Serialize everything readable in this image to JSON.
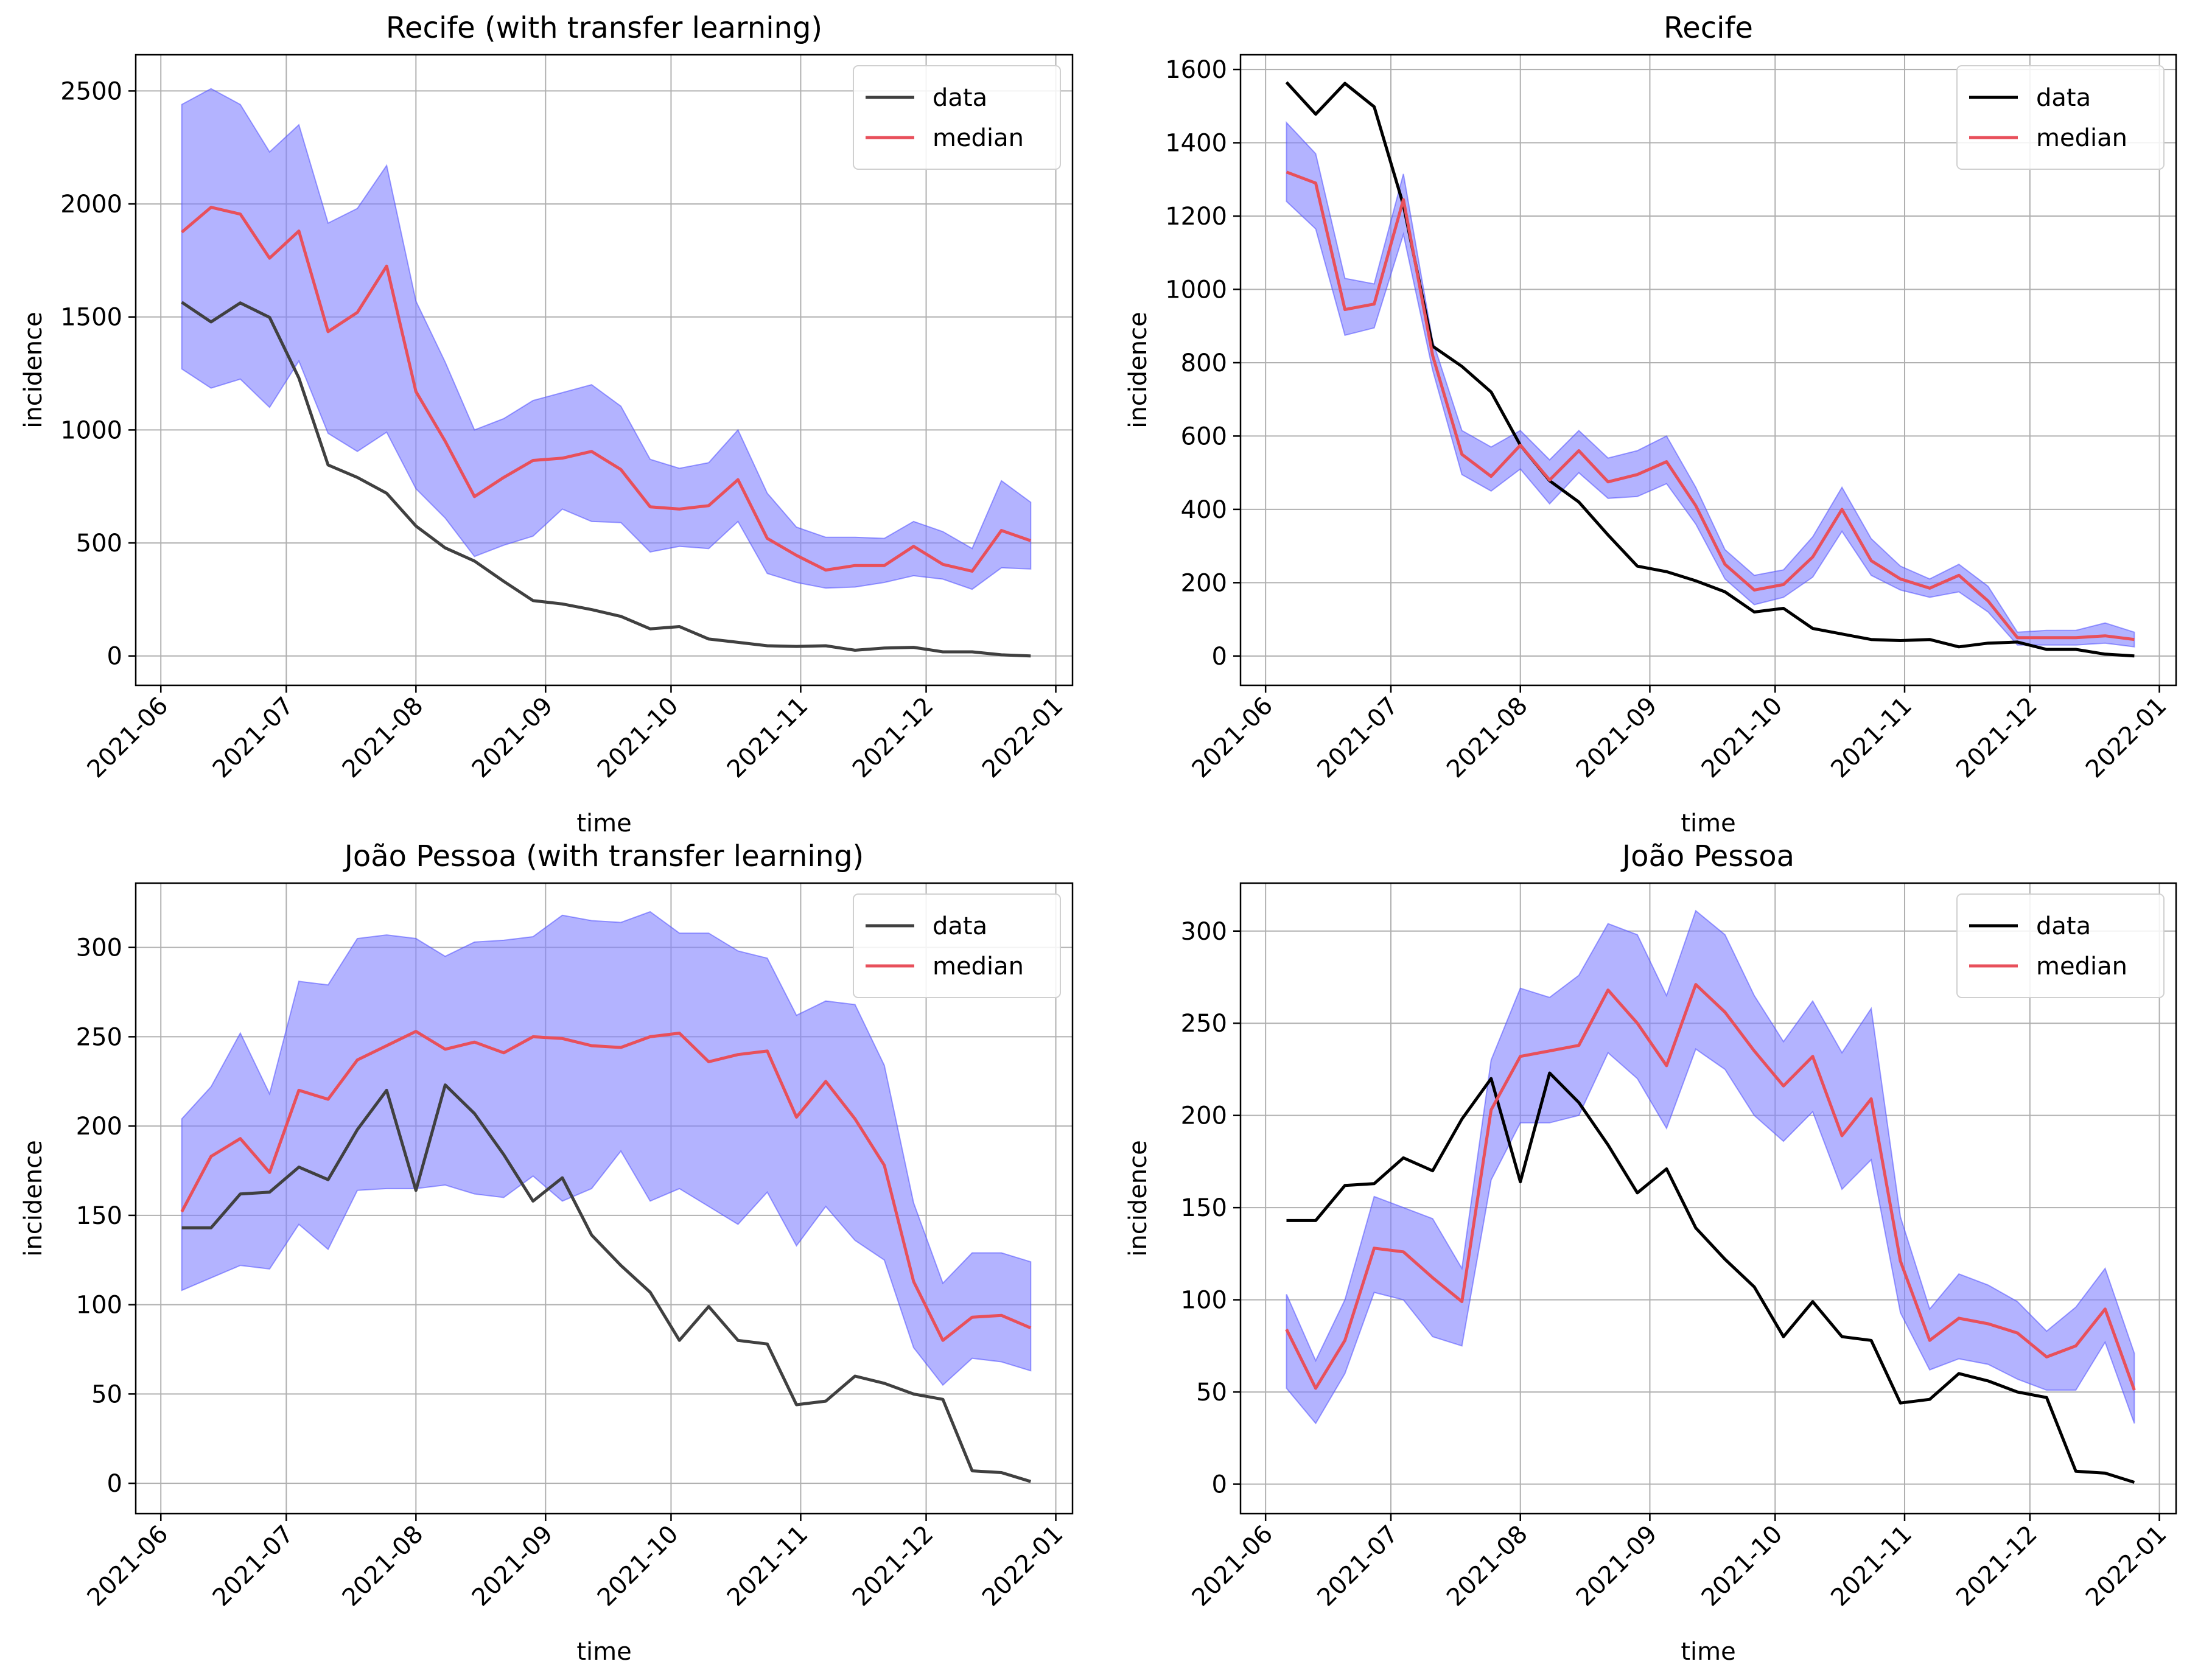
{
  "chart_data": [
    {
      "type": "line",
      "title": "Recife (with transfer learning)",
      "xlabel": "time",
      "ylabel": "incidence",
      "x_ticks": [
        "2021-06",
        "2021-07",
        "2021-08",
        "2021-09",
        "2021-10",
        "2021-11",
        "2021-12",
        "2022-01"
      ],
      "y_ticks": [
        0,
        500,
        1000,
        1500,
        2000,
        2500
      ],
      "ylim": [
        -130,
        2660
      ],
      "grid": true,
      "legend": "top-right",
      "legend_labels": {
        "data": "data",
        "median": "median"
      },
      "data_color": "#404040",
      "median_color": "#e8505b",
      "band_color": "#8080ff",
      "dates": [
        "2021-06-06",
        "2021-06-13",
        "2021-06-20",
        "2021-06-27",
        "2021-07-04",
        "2021-07-11",
        "2021-07-18",
        "2021-07-25",
        "2021-08-01",
        "2021-08-08",
        "2021-08-15",
        "2021-08-22",
        "2021-08-29",
        "2021-09-05",
        "2021-09-12",
        "2021-09-19",
        "2021-09-26",
        "2021-10-03",
        "2021-10-10",
        "2021-10-17",
        "2021-10-24",
        "2021-10-31",
        "2021-11-07",
        "2021-11-14",
        "2021-11-21",
        "2021-11-28",
        "2021-12-05",
        "2021-12-12",
        "2021-12-19",
        "2021-12-26"
      ],
      "data": [
        1565,
        1478,
        1562,
        1498,
        1230,
        845,
        790,
        720,
        575,
        478,
        420,
        330,
        245,
        230,
        205,
        175,
        120,
        130,
        75,
        60,
        45,
        42,
        45,
        25,
        35,
        38,
        18,
        18,
        5,
        0
      ],
      "median": [
        1875,
        1985,
        1955,
        1760,
        1880,
        1435,
        1520,
        1725,
        1170,
        950,
        705,
        790,
        865,
        875,
        905,
        825,
        660,
        650,
        665,
        780,
        520,
        445,
        380,
        400,
        400,
        485,
        405,
        375,
        555,
        510
      ],
      "lower": [
        1270,
        1185,
        1225,
        1100,
        1305,
        985,
        905,
        990,
        740,
        610,
        440,
        490,
        530,
        650,
        595,
        590,
        460,
        485,
        475,
        595,
        365,
        325,
        300,
        305,
        325,
        355,
        340,
        295,
        390,
        385
      ],
      "upper": [
        2440,
        2510,
        2440,
        2230,
        2350,
        1915,
        1980,
        2170,
        1570,
        1300,
        1000,
        1050,
        1130,
        1165,
        1200,
        1105,
        870,
        830,
        855,
        1000,
        720,
        570,
        525,
        525,
        520,
        595,
        550,
        475,
        775,
        680
      ]
    },
    {
      "type": "line",
      "title": "Recife",
      "xlabel": "time",
      "ylabel": "incidence",
      "x_ticks": [
        "2021-06",
        "2021-07",
        "2021-08",
        "2021-09",
        "2021-10",
        "2021-11",
        "2021-12",
        "2022-01"
      ],
      "y_ticks": [
        0,
        200,
        400,
        600,
        800,
        1000,
        1200,
        1400,
        1600
      ],
      "ylim": [
        -80,
        1640
      ],
      "grid": true,
      "legend": "top-right",
      "legend_labels": {
        "data": "data",
        "median": "median"
      },
      "data_color": "#000000",
      "median_color": "#e8505b",
      "band_color": "#8080ff",
      "dates": [
        "2021-06-06",
        "2021-06-13",
        "2021-06-20",
        "2021-06-27",
        "2021-07-04",
        "2021-07-11",
        "2021-07-18",
        "2021-07-25",
        "2021-08-01",
        "2021-08-08",
        "2021-08-15",
        "2021-08-22",
        "2021-08-29",
        "2021-09-05",
        "2021-09-12",
        "2021-09-19",
        "2021-09-26",
        "2021-10-03",
        "2021-10-10",
        "2021-10-17",
        "2021-10-24",
        "2021-10-31",
        "2021-11-07",
        "2021-11-14",
        "2021-11-21",
        "2021-11-28",
        "2021-12-05",
        "2021-12-12",
        "2021-12-19",
        "2021-12-26"
      ],
      "data": [
        1565,
        1478,
        1562,
        1498,
        1230,
        845,
        790,
        720,
        575,
        478,
        420,
        330,
        245,
        230,
        205,
        175,
        120,
        130,
        75,
        60,
        45,
        42,
        45,
        25,
        35,
        38,
        18,
        18,
        5,
        0
      ],
      "median": [
        1320,
        1290,
        945,
        960,
        1245,
        820,
        550,
        490,
        575,
        480,
        560,
        475,
        495,
        530,
        410,
        250,
        180,
        195,
        270,
        400,
        260,
        210,
        185,
        220,
        150,
        50,
        50,
        50,
        55,
        45
      ],
      "lower": [
        1240,
        1165,
        875,
        895,
        1150,
        780,
        495,
        450,
        510,
        415,
        500,
        430,
        435,
        470,
        360,
        210,
        140,
        160,
        215,
        340,
        220,
        180,
        160,
        175,
        120,
        30,
        30,
        30,
        35,
        25
      ],
      "upper": [
        1455,
        1370,
        1030,
        1015,
        1315,
        860,
        615,
        570,
        615,
        535,
        615,
        540,
        560,
        600,
        460,
        290,
        220,
        235,
        325,
        460,
        320,
        245,
        210,
        250,
        190,
        65,
        70,
        70,
        90,
        65
      ]
    },
    {
      "type": "line",
      "title": "João Pessoa (with transfer learning)",
      "xlabel": "time",
      "ylabel": "incidence",
      "x_ticks": [
        "2021-06",
        "2021-07",
        "2021-08",
        "2021-09",
        "2021-10",
        "2021-11",
        "2021-12",
        "2022-01"
      ],
      "y_ticks": [
        0,
        50,
        100,
        150,
        200,
        250,
        300
      ],
      "ylim": [
        -17,
        336
      ],
      "grid": true,
      "legend": "top-right",
      "legend_labels": {
        "data": "data",
        "median": "median"
      },
      "data_color": "#404040",
      "median_color": "#e8505b",
      "band_color": "#8080ff",
      "dates": [
        "2021-06-06",
        "2021-06-13",
        "2021-06-20",
        "2021-06-27",
        "2021-07-04",
        "2021-07-11",
        "2021-07-18",
        "2021-07-25",
        "2021-08-01",
        "2021-08-08",
        "2021-08-15",
        "2021-08-22",
        "2021-08-29",
        "2021-09-05",
        "2021-09-12",
        "2021-09-19",
        "2021-09-26",
        "2021-10-03",
        "2021-10-10",
        "2021-10-17",
        "2021-10-24",
        "2021-10-31",
        "2021-11-07",
        "2021-11-14",
        "2021-11-21",
        "2021-11-28",
        "2021-12-05",
        "2021-12-12",
        "2021-12-19",
        "2021-12-26"
      ],
      "data": [
        143,
        143,
        162,
        163,
        177,
        170,
        198,
        220,
        164,
        223,
        207,
        184,
        158,
        171,
        139,
        122,
        107,
        80,
        99,
        80,
        78,
        44,
        46,
        60,
        56,
        50,
        47,
        7,
        6,
        1
      ],
      "median": [
        152,
        183,
        193,
        174,
        220,
        215,
        237,
        245,
        253,
        243,
        247,
        241,
        250,
        249,
        245,
        244,
        250,
        252,
        236,
        240,
        242,
        205,
        225,
        204,
        178,
        113,
        80,
        93,
        94,
        87
      ],
      "lower": [
        108,
        115,
        122,
        120,
        145,
        131,
        164,
        165,
        165,
        167,
        162,
        160,
        172,
        158,
        165,
        186,
        158,
        165,
        155,
        145,
        163,
        133,
        155,
        136,
        125,
        76,
        55,
        70,
        68,
        63
      ],
      "upper": [
        204,
        222,
        252,
        218,
        281,
        279,
        305,
        307,
        305,
        295,
        303,
        304,
        306,
        318,
        315,
        314,
        320,
        308,
        308,
        298,
        294,
        262,
        270,
        268,
        234,
        157,
        112,
        129,
        129,
        124
      ]
    },
    {
      "type": "line",
      "title": "João Pessoa",
      "xlabel": "time",
      "ylabel": "incidence",
      "x_ticks": [
        "2021-06",
        "2021-07",
        "2021-08",
        "2021-09",
        "2021-10",
        "2021-11",
        "2021-12",
        "2022-01"
      ],
      "y_ticks": [
        0,
        50,
        100,
        150,
        200,
        250,
        300
      ],
      "ylim": [
        -16,
        326
      ],
      "grid": true,
      "legend": "top-right",
      "legend_labels": {
        "data": "data",
        "median": "median"
      },
      "data_color": "#000000",
      "median_color": "#e8505b",
      "band_color": "#8080ff",
      "dates": [
        "2021-06-06",
        "2021-06-13",
        "2021-06-20",
        "2021-06-27",
        "2021-07-04",
        "2021-07-11",
        "2021-07-18",
        "2021-07-25",
        "2021-08-01",
        "2021-08-08",
        "2021-08-15",
        "2021-08-22",
        "2021-08-29",
        "2021-09-05",
        "2021-09-12",
        "2021-09-19",
        "2021-09-26",
        "2021-10-03",
        "2021-10-10",
        "2021-10-17",
        "2021-10-24",
        "2021-10-31",
        "2021-11-07",
        "2021-11-14",
        "2021-11-21",
        "2021-11-28",
        "2021-12-05",
        "2021-12-12",
        "2021-12-19",
        "2021-12-26"
      ],
      "data": [
        143,
        143,
        162,
        163,
        177,
        170,
        198,
        220,
        164,
        223,
        207,
        184,
        158,
        171,
        139,
        122,
        107,
        80,
        99,
        80,
        78,
        44,
        46,
        60,
        56,
        50,
        47,
        7,
        6,
        1
      ],
      "median": [
        84,
        52,
        78,
        128,
        126,
        112,
        99,
        203,
        232,
        235,
        238,
        268,
        250,
        227,
        271,
        256,
        235,
        216,
        232,
        189,
        209,
        121,
        78,
        90,
        87,
        82,
        69,
        75,
        95,
        51
      ],
      "lower": [
        52,
        33,
        60,
        104,
        100,
        80,
        75,
        165,
        196,
        196,
        200,
        234,
        220,
        193,
        236,
        225,
        200,
        186,
        202,
        160,
        176,
        93,
        62,
        68,
        65,
        57,
        51,
        51,
        77,
        33
      ],
      "upper": [
        103,
        67,
        100,
        156,
        150,
        144,
        117,
        230,
        269,
        264,
        276,
        304,
        298,
        265,
        311,
        298,
        265,
        240,
        262,
        234,
        258,
        145,
        95,
        114,
        108,
        99,
        83,
        96,
        117,
        71
      ]
    }
  ]
}
